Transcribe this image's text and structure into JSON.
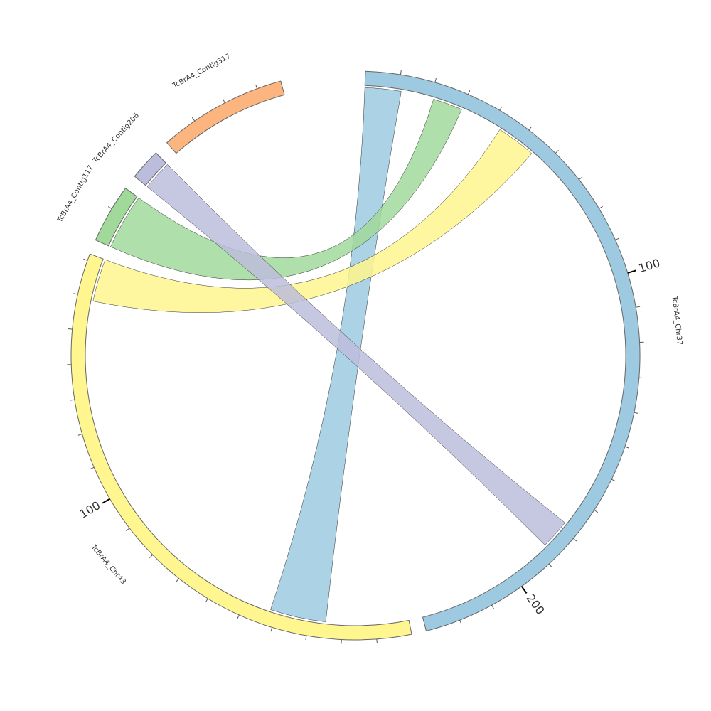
{
  "chart_data": {
    "type": "chord",
    "title": "",
    "sectors": [
      {
        "name": "TcBrA4_Chr37",
        "length": 230,
        "color": "#9ecae1",
        "tick_labels": [
          {
            "value": 100,
            "label": "100"
          },
          {
            "value": 200,
            "label": "200"
          }
        ]
      },
      {
        "name": "TcBrA4_Chr43",
        "length": 172,
        "color": "#fff68f",
        "tick_labels": [
          {
            "value": 100,
            "label": "100"
          }
        ]
      },
      {
        "name": "TcBrA4_Contig117",
        "length": 17,
        "color": "#a1d99b",
        "tick_labels": []
      },
      {
        "name": "TcBrA4_Contig206",
        "length": 9,
        "color": "#bcbddc",
        "tick_labels": []
      },
      {
        "name": "TcBrA4_Contig317",
        "length": 37,
        "color": "#fdb57f",
        "tick_labels": []
      }
    ],
    "links": [
      {
        "from": "TcBrA4_Chr37",
        "from_range": [
          0,
          11
        ],
        "to": "TcBrA4_Chr43",
        "to_range": [
          25,
          42
        ],
        "color": "#9ecae1"
      },
      {
        "from": "TcBrA4_Chr37",
        "from_range": [
          21,
          30
        ],
        "to": "TcBrA4_Contig117",
        "to_range": [
          0,
          17
        ],
        "color": "#a1d99b"
      },
      {
        "from": "TcBrA4_Chr37",
        "from_range": [
          43,
          55
        ],
        "to": "TcBrA4_Chr43",
        "to_range": [
          159,
          172
        ],
        "color": "#fff68f"
      },
      {
        "from": "TcBrA4_Chr37",
        "from_range": [
          178,
          187
        ],
        "to": "TcBrA4_Contig206",
        "to_range": [
          0,
          9
        ],
        "color": "#bcbddc"
      }
    ]
  }
}
